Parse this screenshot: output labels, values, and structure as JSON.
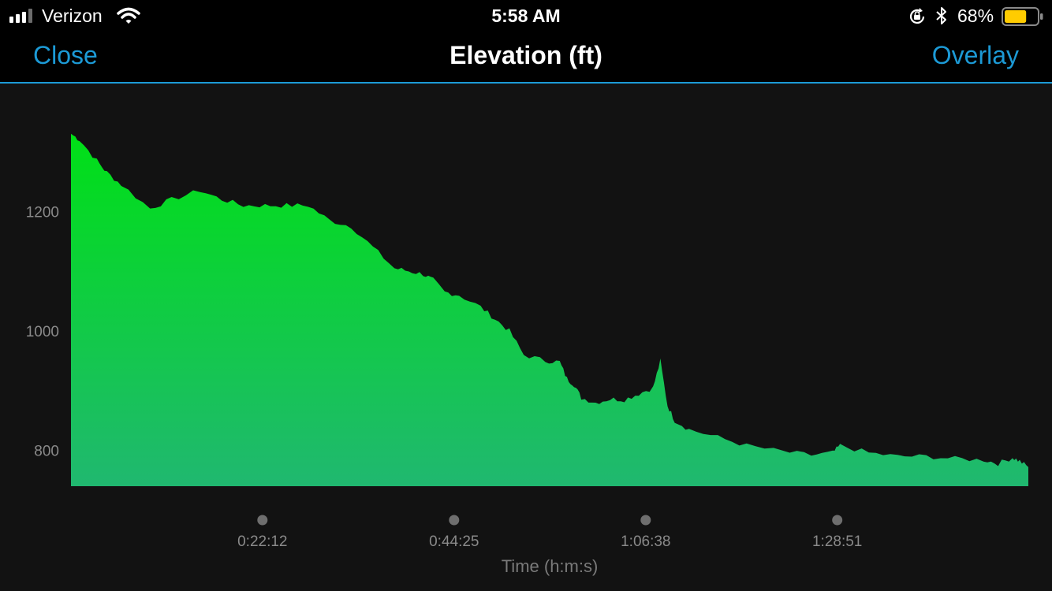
{
  "status_bar": {
    "carrier": "Verizon",
    "time": "5:58 AM",
    "battery_percent": "68%",
    "battery_level": 0.68,
    "battery_color": "#ffcc00"
  },
  "nav": {
    "close_label": "Close",
    "title": "Elevation (ft)",
    "overlay_label": "Overlay",
    "accent_color": "#1c9ad6"
  },
  "chart_data": {
    "type": "area",
    "title": "",
    "xlabel": "Time (h:m:s)",
    "ylabel": "",
    "y_ticks": [
      "1200",
      "1000",
      "800"
    ],
    "y_tick_values": [
      1200,
      1000,
      800
    ],
    "x_ticks": [
      "0:22:12",
      "0:44:25",
      "1:06:38",
      "1:28:51"
    ],
    "x_tick_values": [
      1332,
      2665,
      3998,
      5331
    ],
    "xlim": [
      0,
      6660
    ],
    "ylim": [
      740,
      1335
    ],
    "grid": false,
    "fill_gradient": [
      "#00e016",
      "#20b870"
    ],
    "x": [
      0,
      60,
      180,
      250,
      350,
      550,
      700,
      900,
      1050,
      1200,
      1350,
      1500,
      1650,
      1800,
      1950,
      2100,
      2250,
      2350,
      2450,
      2520,
      2600,
      2700,
      2850,
      2950,
      3050,
      3150,
      3300,
      3400,
      3450,
      3500,
      3550,
      3650,
      3750,
      3850,
      3950,
      4050,
      4100,
      4150,
      4200,
      4300,
      4500,
      4700,
      4950,
      5150,
      5300,
      5350,
      5550,
      5750,
      5950,
      6150,
      6350,
      6450,
      6550,
      6600,
      6660
    ],
    "y": [
      1330,
      1320,
      1285,
      1265,
      1245,
      1205,
      1220,
      1235,
      1220,
      1210,
      1210,
      1210,
      1210,
      1185,
      1175,
      1140,
      1105,
      1100,
      1095,
      1085,
      1065,
      1060,
      1040,
      1020,
      1000,
      960,
      950,
      948,
      920,
      910,
      888,
      880,
      886,
      885,
      895,
      905,
      950,
      875,
      850,
      835,
      822,
      808,
      798,
      792,
      796,
      808,
      796,
      790,
      790,
      786,
      784,
      778,
      788,
      782,
      772
    ],
    "series": [
      {
        "values": [
          1330,
          1320,
          1285,
          1265,
          1245,
          1205,
          1220,
          1235,
          1220,
          1210,
          1210,
          1210,
          1210,
          1185,
          1175,
          1140,
          1105,
          1100,
          1095,
          1085,
          1065,
          1060,
          1040,
          1020,
          1000,
          960,
          950,
          948,
          920,
          910,
          888,
          880,
          886,
          885,
          895,
          905,
          950,
          875,
          850,
          835,
          822,
          808,
          798,
          792,
          796,
          808,
          796,
          790,
          790,
          786,
          784,
          778,
          788,
          782,
          772
        ]
      }
    ]
  }
}
